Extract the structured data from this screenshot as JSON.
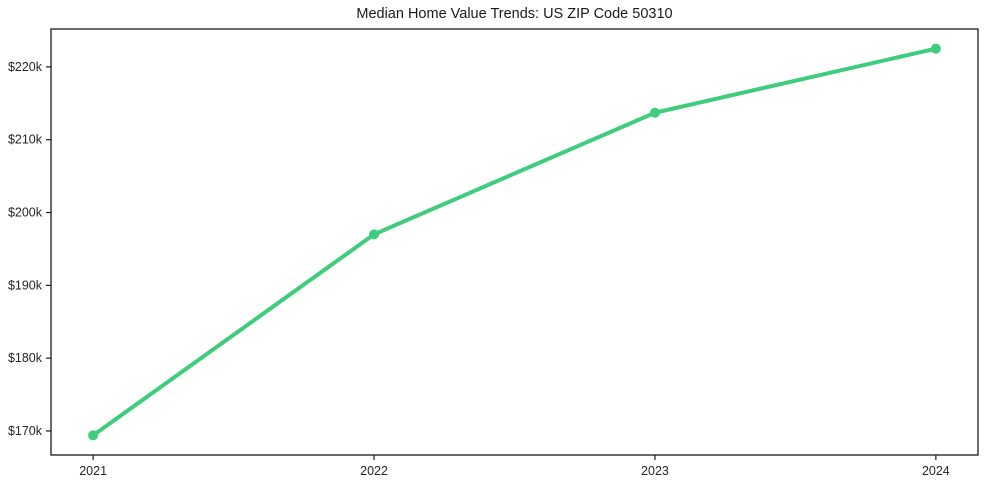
{
  "title": "Median Home Value Trends: US ZIP Code 50310",
  "colors": {
    "line": "#3ecc7d",
    "marker": "#3ecc7d",
    "axis": "#1a1a1a",
    "tick_text": "#262626",
    "background": "#ffffff"
  },
  "chart_data": {
    "type": "line",
    "title": "Median Home Value Trends: US ZIP Code 50310",
    "xlabel": "",
    "ylabel": "",
    "categories": [
      "2021",
      "2022",
      "2023",
      "2024"
    ],
    "x": [
      2021,
      2022,
      2023,
      2024
    ],
    "series": [
      {
        "name": "Median home value",
        "values": [
          169400,
          197000,
          213700,
          222500
        ]
      }
    ],
    "y_ticks": [
      170000,
      180000,
      190000,
      200000,
      210000,
      220000
    ],
    "y_tick_labels": [
      "$170k",
      "$180k",
      "$190k",
      "$200k",
      "$210k",
      "$220k"
    ],
    "ylim": [
      166700,
      225200
    ],
    "xlim": [
      2020.85,
      2024.15
    ],
    "grid": false,
    "legend": "none",
    "marker_style": "circle",
    "line_width": 4,
    "marker_radius": 5
  }
}
